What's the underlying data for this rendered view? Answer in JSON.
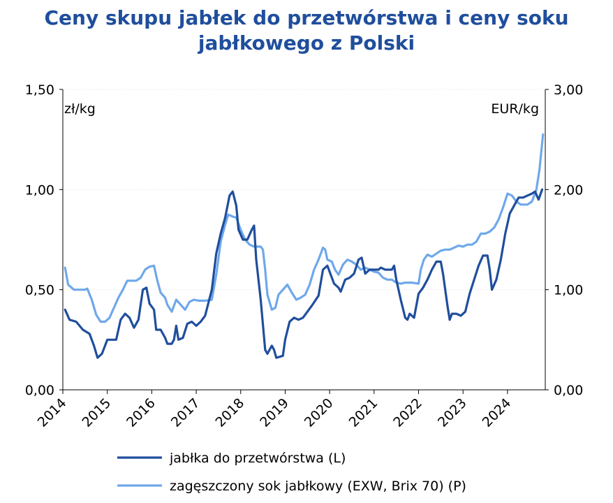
{
  "chart_data": {
    "type": "line",
    "title_line1": "Ceny skupu jabłek do przetwórstwa i ceny soku",
    "title_line2": "jabłkowego z Polski",
    "left_unit": "zł/kg",
    "right_unit": "EUR/kg",
    "left_axis": {
      "ylim": [
        0,
        1.5
      ],
      "ticks": [
        "0,00",
        "0,50",
        "1,00",
        "1,50"
      ]
    },
    "right_axis": {
      "ylim": [
        0,
        3.0
      ],
      "ticks": [
        "0,00",
        "1,00",
        "2,00",
        "3,00"
      ]
    },
    "x_range": [
      2014.0,
      2024.85
    ],
    "x_ticks": [
      "2014",
      "2015",
      "2016",
      "2017",
      "2018",
      "2019",
      "2020",
      "2021",
      "2022",
      "2023",
      "2024"
    ],
    "grid": true,
    "legend_position": "bottom",
    "series": [
      {
        "name": "jabłka do przetwórstwa (L)",
        "axis": "left",
        "color": "#1f4e9c",
        "points": [
          [
            2014.05,
            0.4
          ],
          [
            2014.15,
            0.35
          ],
          [
            2014.3,
            0.34
          ],
          [
            2014.45,
            0.3
          ],
          [
            2014.6,
            0.28
          ],
          [
            2014.7,
            0.22
          ],
          [
            2014.78,
            0.16
          ],
          [
            2014.88,
            0.18
          ],
          [
            2015.0,
            0.25
          ],
          [
            2015.1,
            0.25
          ],
          [
            2015.2,
            0.25
          ],
          [
            2015.3,
            0.35
          ],
          [
            2015.4,
            0.38
          ],
          [
            2015.5,
            0.36
          ],
          [
            2015.6,
            0.31
          ],
          [
            2015.7,
            0.35
          ],
          [
            2015.8,
            0.5
          ],
          [
            2015.88,
            0.51
          ],
          [
            2015.95,
            0.43
          ],
          [
            2016.05,
            0.4
          ],
          [
            2016.1,
            0.3
          ],
          [
            2016.2,
            0.3
          ],
          [
            2016.3,
            0.26
          ],
          [
            2016.35,
            0.23
          ],
          [
            2016.45,
            0.23
          ],
          [
            2016.5,
            0.25
          ],
          [
            2016.55,
            0.32
          ],
          [
            2016.6,
            0.25
          ],
          [
            2016.7,
            0.26
          ],
          [
            2016.8,
            0.33
          ],
          [
            2016.9,
            0.34
          ],
          [
            2017.0,
            0.32
          ],
          [
            2017.1,
            0.34
          ],
          [
            2017.2,
            0.37
          ],
          [
            2017.35,
            0.5
          ],
          [
            2017.45,
            0.68
          ],
          [
            2017.55,
            0.78
          ],
          [
            2017.65,
            0.86
          ],
          [
            2017.75,
            0.97
          ],
          [
            2017.82,
            0.99
          ],
          [
            2017.9,
            0.92
          ],
          [
            2017.95,
            0.8
          ],
          [
            2018.05,
            0.75
          ],
          [
            2018.15,
            0.75
          ],
          [
            2018.25,
            0.8
          ],
          [
            2018.3,
            0.82
          ],
          [
            2018.35,
            0.65
          ],
          [
            2018.45,
            0.45
          ],
          [
            2018.55,
            0.2
          ],
          [
            2018.6,
            0.18
          ],
          [
            2018.7,
            0.22
          ],
          [
            2018.75,
            0.2
          ],
          [
            2018.8,
            0.16
          ],
          [
            2018.95,
            0.17
          ],
          [
            2019.0,
            0.25
          ],
          [
            2019.1,
            0.34
          ],
          [
            2019.2,
            0.36
          ],
          [
            2019.3,
            0.35
          ],
          [
            2019.4,
            0.36
          ],
          [
            2019.5,
            0.39
          ],
          [
            2019.6,
            0.42
          ],
          [
            2019.75,
            0.47
          ],
          [
            2019.85,
            0.6
          ],
          [
            2019.95,
            0.62
          ],
          [
            2020.05,
            0.56
          ],
          [
            2020.1,
            0.53
          ],
          [
            2020.2,
            0.51
          ],
          [
            2020.25,
            0.49
          ],
          [
            2020.35,
            0.55
          ],
          [
            2020.45,
            0.56
          ],
          [
            2020.55,
            0.58
          ],
          [
            2020.65,
            0.65
          ],
          [
            2020.72,
            0.66
          ],
          [
            2020.8,
            0.58
          ],
          [
            2020.9,
            0.6
          ],
          [
            2021.0,
            0.6
          ],
          [
            2021.1,
            0.6
          ],
          [
            2021.15,
            0.61
          ],
          [
            2021.25,
            0.6
          ],
          [
            2021.4,
            0.6
          ],
          [
            2021.45,
            0.62
          ],
          [
            2021.5,
            0.55
          ],
          [
            2021.6,
            0.45
          ],
          [
            2021.7,
            0.36
          ],
          [
            2021.75,
            0.35
          ],
          [
            2021.8,
            0.38
          ],
          [
            2021.9,
            0.36
          ],
          [
            2022.0,
            0.48
          ],
          [
            2022.1,
            0.51
          ],
          [
            2022.2,
            0.55
          ],
          [
            2022.3,
            0.6
          ],
          [
            2022.4,
            0.64
          ],
          [
            2022.5,
            0.64
          ],
          [
            2022.55,
            0.58
          ],
          [
            2022.65,
            0.42
          ],
          [
            2022.7,
            0.35
          ],
          [
            2022.75,
            0.38
          ],
          [
            2022.85,
            0.38
          ],
          [
            2022.95,
            0.37
          ],
          [
            2023.05,
            0.39
          ],
          [
            2023.15,
            0.48
          ],
          [
            2023.25,
            0.55
          ],
          [
            2023.35,
            0.62
          ],
          [
            2023.45,
            0.67
          ],
          [
            2023.55,
            0.67
          ],
          [
            2023.6,
            0.6
          ],
          [
            2023.65,
            0.5
          ],
          [
            2023.75,
            0.55
          ],
          [
            2023.85,
            0.65
          ],
          [
            2023.95,
            0.78
          ],
          [
            2024.05,
            0.88
          ],
          [
            2024.15,
            0.92
          ],
          [
            2024.25,
            0.96
          ],
          [
            2024.35,
            0.96
          ],
          [
            2024.45,
            0.97
          ],
          [
            2024.55,
            0.98
          ],
          [
            2024.62,
            0.99
          ],
          [
            2024.7,
            0.95
          ],
          [
            2024.78,
            1.0
          ]
        ]
      },
      {
        "name": "zagęszczony sok jabłkowy (EXW, Brix 70) (P)",
        "axis": "right",
        "color": "#6fa8ea",
        "points": [
          [
            2014.05,
            1.22
          ],
          [
            2014.12,
            1.05
          ],
          [
            2014.25,
            1.0
          ],
          [
            2014.4,
            1.0
          ],
          [
            2014.5,
            1.0
          ],
          [
            2014.55,
            1.01
          ],
          [
            2014.65,
            0.9
          ],
          [
            2014.75,
            0.75
          ],
          [
            2014.85,
            0.68
          ],
          [
            2014.95,
            0.68
          ],
          [
            2015.05,
            0.72
          ],
          [
            2015.15,
            0.82
          ],
          [
            2015.25,
            0.92
          ],
          [
            2015.35,
            1.0
          ],
          [
            2015.45,
            1.09
          ],
          [
            2015.55,
            1.09
          ],
          [
            2015.65,
            1.09
          ],
          [
            2015.75,
            1.12
          ],
          [
            2015.85,
            1.2
          ],
          [
            2015.95,
            1.23
          ],
          [
            2016.05,
            1.24
          ],
          [
            2016.12,
            1.1
          ],
          [
            2016.2,
            0.97
          ],
          [
            2016.3,
            0.92
          ],
          [
            2016.35,
            0.85
          ],
          [
            2016.45,
            0.78
          ],
          [
            2016.55,
            0.9
          ],
          [
            2016.65,
            0.85
          ],
          [
            2016.75,
            0.8
          ],
          [
            2016.85,
            0.88
          ],
          [
            2016.95,
            0.9
          ],
          [
            2017.05,
            0.89
          ],
          [
            2017.2,
            0.89
          ],
          [
            2017.35,
            0.9
          ],
          [
            2017.45,
            1.15
          ],
          [
            2017.55,
            1.48
          ],
          [
            2017.65,
            1.65
          ],
          [
            2017.72,
            1.75
          ],
          [
            2017.82,
            1.73
          ],
          [
            2017.9,
            1.72
          ],
          [
            2018.0,
            1.6
          ],
          [
            2018.1,
            1.5
          ],
          [
            2018.2,
            1.45
          ],
          [
            2018.3,
            1.43
          ],
          [
            2018.45,
            1.43
          ],
          [
            2018.5,
            1.4
          ],
          [
            2018.55,
            1.2
          ],
          [
            2018.6,
            0.95
          ],
          [
            2018.7,
            0.8
          ],
          [
            2018.78,
            0.82
          ],
          [
            2018.85,
            0.95
          ],
          [
            2018.95,
            1.0
          ],
          [
            2019.05,
            1.05
          ],
          [
            2019.15,
            0.97
          ],
          [
            2019.25,
            0.9
          ],
          [
            2019.35,
            0.92
          ],
          [
            2019.45,
            0.95
          ],
          [
            2019.55,
            1.05
          ],
          [
            2019.65,
            1.2
          ],
          [
            2019.75,
            1.3
          ],
          [
            2019.85,
            1.42
          ],
          [
            2019.9,
            1.4
          ],
          [
            2019.95,
            1.3
          ],
          [
            2020.05,
            1.28
          ],
          [
            2020.12,
            1.2
          ],
          [
            2020.2,
            1.15
          ],
          [
            2020.3,
            1.25
          ],
          [
            2020.4,
            1.3
          ],
          [
            2020.5,
            1.28
          ],
          [
            2020.6,
            1.25
          ],
          [
            2020.7,
            1.2
          ],
          [
            2020.8,
            1.22
          ],
          [
            2020.9,
            1.2
          ],
          [
            2021.0,
            1.18
          ],
          [
            2021.1,
            1.17
          ],
          [
            2021.2,
            1.12
          ],
          [
            2021.3,
            1.1
          ],
          [
            2021.4,
            1.1
          ],
          [
            2021.5,
            1.07
          ],
          [
            2021.6,
            1.06
          ],
          [
            2021.7,
            1.07
          ],
          [
            2021.85,
            1.07
          ],
          [
            2022.0,
            1.06
          ],
          [
            2022.05,
            1.2
          ],
          [
            2022.12,
            1.3
          ],
          [
            2022.2,
            1.35
          ],
          [
            2022.3,
            1.33
          ],
          [
            2022.4,
            1.36
          ],
          [
            2022.5,
            1.39
          ],
          [
            2022.6,
            1.4
          ],
          [
            2022.7,
            1.4
          ],
          [
            2022.8,
            1.42
          ],
          [
            2022.9,
            1.44
          ],
          [
            2023.0,
            1.43
          ],
          [
            2023.1,
            1.45
          ],
          [
            2023.2,
            1.45
          ],
          [
            2023.3,
            1.48
          ],
          [
            2023.4,
            1.56
          ],
          [
            2023.5,
            1.56
          ],
          [
            2023.6,
            1.58
          ],
          [
            2023.7,
            1.62
          ],
          [
            2023.8,
            1.7
          ],
          [
            2023.9,
            1.82
          ],
          [
            2024.0,
            1.96
          ],
          [
            2024.1,
            1.94
          ],
          [
            2024.2,
            1.88
          ],
          [
            2024.3,
            1.85
          ],
          [
            2024.45,
            1.85
          ],
          [
            2024.55,
            1.88
          ],
          [
            2024.65,
            2.0
          ],
          [
            2024.72,
            2.2
          ],
          [
            2024.8,
            2.55
          ]
        ]
      }
    ]
  }
}
